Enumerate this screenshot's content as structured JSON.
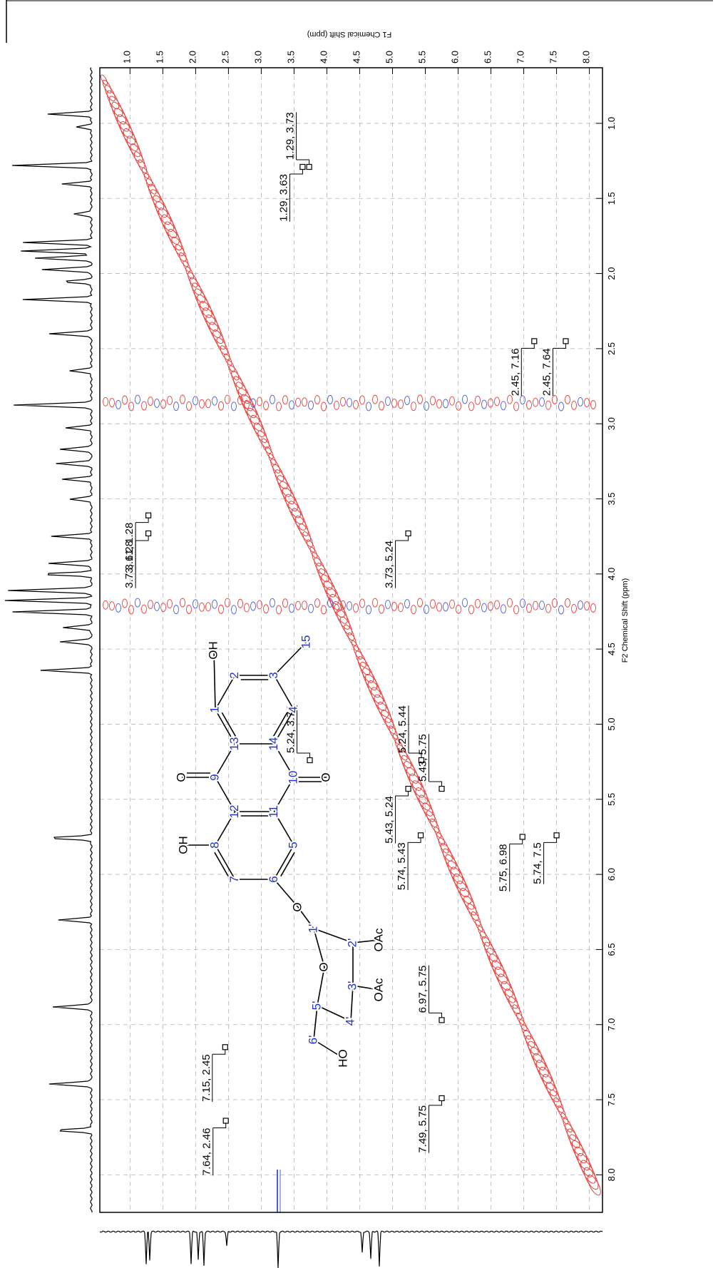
{
  "chart_data": {
    "type": "nmr2d",
    "x_label": "F1 Chemical Shift (ppm)",
    "y_label": "F2 Chemical Shift (ppm)",
    "xlim": [
      0.54,
      8.2
    ],
    "ylim": [
      0.63,
      8.25
    ],
    "xticks": [
      {
        "value": 1,
        "label": "1.0"
      },
      1.5,
      {
        "value": 2,
        "label": "2.0"
      },
      2.5,
      {
        "value": 3,
        "label": "3.0"
      },
      3.5,
      {
        "value": 4,
        "label": "4.0"
      },
      4.5,
      {
        "value": 5,
        "label": "5.0"
      },
      5.5,
      {
        "value": 6,
        "label": "6.0"
      },
      6.5,
      {
        "value": 7,
        "label": "7.0"
      },
      7.5,
      {
        "value": 8,
        "label": "8.0"
      }
    ],
    "yticks": [
      {
        "value": 1,
        "label": "1.0"
      },
      1.5,
      {
        "value": 2,
        "label": "2.0"
      },
      2.5,
      {
        "value": 3,
        "label": "3.0"
      },
      3.5,
      {
        "value": 4,
        "label": "4.0"
      },
      4.5,
      {
        "value": 5,
        "label": "5.0"
      },
      5.5,
      {
        "value": 6,
        "label": "6.0"
      },
      6.5,
      {
        "value": 7,
        "label": "7.0"
      },
      7.5,
      {
        "value": 8,
        "label": "8.0"
      }
    ],
    "grid": true,
    "diagonal_color": "#e8403c",
    "negative_color": "#4a5fd8",
    "peaks": [
      {
        "label": "1.29, 3.73",
        "f2": 1.29,
        "f1": 3.73
      },
      {
        "label": "1.29, 3.63",
        "f2": 1.29,
        "f1": 3.63
      },
      {
        "label": "2.45, 7.16",
        "f2": 2.45,
        "f1": 7.16
      },
      {
        "label": "2.45, 7.64",
        "f2": 2.45,
        "f1": 7.64
      },
      {
        "label": "3.61, 1.28",
        "f2": 3.61,
        "f1": 1.28
      },
      {
        "label": "3.73, 1.28",
        "f2": 3.73,
        "f1": 1.28
      },
      {
        "label": "3.73, 5.24",
        "f2": 3.73,
        "f1": 5.24
      },
      {
        "label": "5.24, 3.74",
        "f2": 5.24,
        "f1": 3.74
      },
      {
        "label": "5.24, 5.44",
        "f2": 5.24,
        "f1": 5.44
      },
      {
        "label": "5.43, 5.75",
        "f2": 5.43,
        "f1": 5.75
      },
      {
        "label": "5.43, 5.24",
        "f2": 5.43,
        "f1": 5.24
      },
      {
        "label": "5.74, 5.43",
        "f2": 5.74,
        "f1": 5.43
      },
      {
        "label": "5.75, 6.98",
        "f2": 5.75,
        "f1": 6.98
      },
      {
        "label": "5.74, 7.5",
        "f2": 5.74,
        "f1": 7.5
      },
      {
        "label": "6.97, 5.75",
        "f2": 6.97,
        "f1": 5.75
      },
      {
        "label": "7.15, 2.45",
        "f2": 7.15,
        "f1": 2.45
      },
      {
        "label": "7.64, 2.46",
        "f2": 7.64,
        "f1": 2.46
      },
      {
        "label": "7.49, 5.75",
        "f2": 7.49,
        "f1": 5.75
      }
    ]
  },
  "structure": {
    "number_color": "#2233cc",
    "atom_color": "#000000",
    "labels": [
      "OH",
      "1",
      "2",
      "3",
      "15",
      "4",
      "14",
      "13",
      "9",
      "O",
      "10",
      "O",
      "12",
      "11",
      "8",
      "OH",
      "7",
      "6",
      "5",
      "O",
      "1'",
      "2'",
      "OAc",
      "3'",
      "O",
      "OAc",
      "5'",
      "4'",
      "6'",
      "HO"
    ]
  }
}
